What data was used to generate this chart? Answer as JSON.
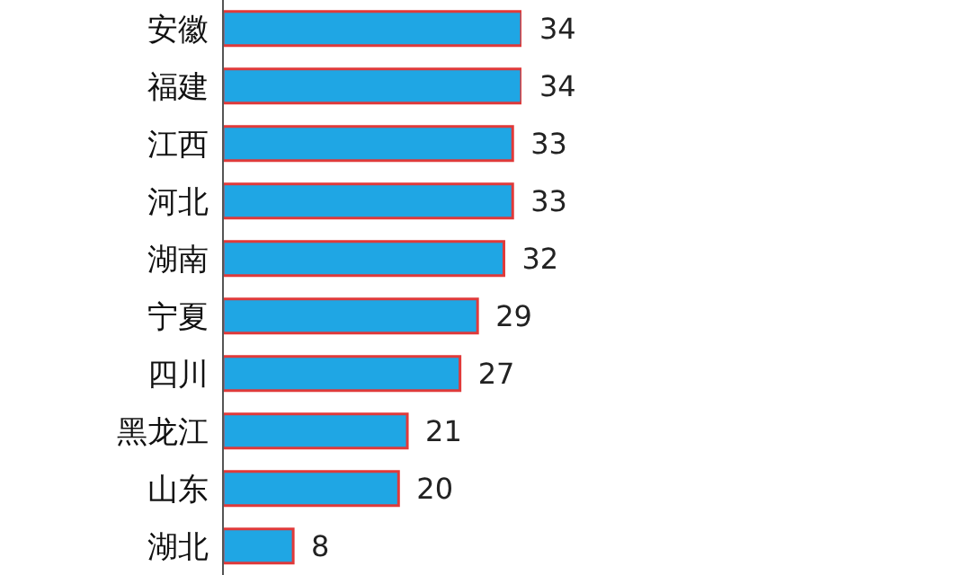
{
  "chart_data": {
    "type": "bar",
    "orientation": "horizontal",
    "categories": [
      "安徽",
      "福建",
      "江西",
      "河北",
      "湖南",
      "宁夏",
      "四川",
      "黑龙江",
      "山东",
      "湖北"
    ],
    "values": [
      34,
      34,
      33,
      33,
      32,
      29,
      27,
      21,
      20,
      8
    ],
    "color": "#1fa6e4",
    "data_labels": true
  }
}
